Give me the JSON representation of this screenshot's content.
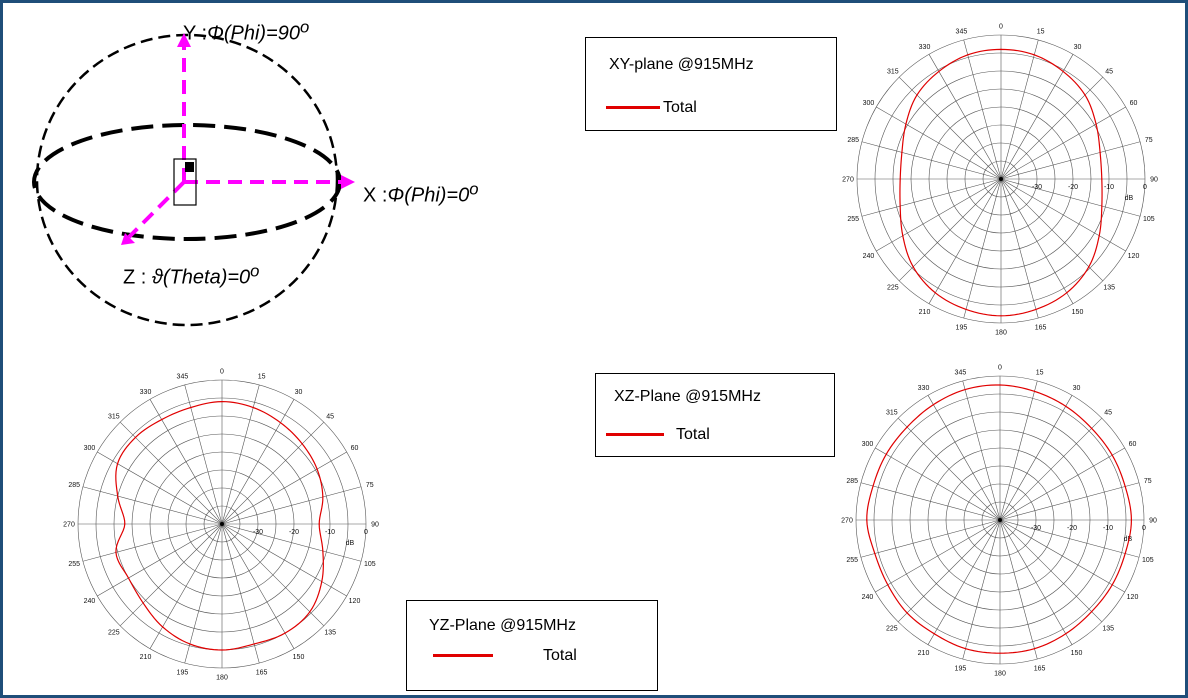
{
  "colors": {
    "frame": "#1f4e79",
    "pattern": "#e00000",
    "axes_arrow": "#ff00ff",
    "grid": "#555555"
  },
  "diagram": {
    "y_prefix": "Y :",
    "y_text": "Φ(Phi)=90",
    "y_sup": "o",
    "x_prefix": "X :",
    "x_text": "Φ(Phi)=0",
    "x_sup": "o",
    "z_prefix": "Z : ",
    "z_text": "ϑ(Theta)=0",
    "z_sup": "o"
  },
  "legends": {
    "xy": {
      "title": "XY-plane @915MHz",
      "series": "Total"
    },
    "xz": {
      "title": "XZ-Plane @915MHz",
      "series": "Total"
    },
    "yz": {
      "title": "YZ-Plane @915MHz",
      "series": "Total"
    }
  },
  "chart_data": [
    {
      "type": "polar",
      "title": "XY-plane @915MHz",
      "angle_ticks": [
        "0",
        "15",
        "30",
        "45",
        "60",
        "75",
        "90",
        "105",
        "120",
        "135",
        "150",
        "165",
        "180",
        "195",
        "210",
        "225",
        "240",
        "255",
        "270",
        "285",
        "300",
        "315",
        "330",
        "345"
      ],
      "radial_ticks": [
        "-30",
        "-20",
        "-10",
        "0"
      ],
      "radial_unit": "dB",
      "rlim": [
        -40,
        0
      ],
      "series": [
        {
          "name": "Total",
          "angles_deg": [
            0,
            15,
            30,
            45,
            60,
            75,
            90,
            105,
            120,
            135,
            150,
            165,
            180,
            195,
            210,
            225,
            240,
            255,
            270,
            285,
            300,
            315,
            330,
            345
          ],
          "values_db": [
            -4,
            -4.3,
            -5.5,
            -7,
            -9.5,
            -11.5,
            -12,
            -11,
            -8.5,
            -5.5,
            -3.5,
            -2.5,
            -2,
            -2.5,
            -3.5,
            -5.5,
            -8.5,
            -11,
            -12,
            -11.5,
            -9.5,
            -7,
            -5.5,
            -4.3
          ]
        }
      ]
    },
    {
      "type": "polar",
      "title": "YZ-Plane @915MHz",
      "angle_ticks": [
        "0",
        "15",
        "30",
        "45",
        "60",
        "75",
        "90",
        "105",
        "120",
        "135",
        "150",
        "165",
        "180",
        "195",
        "210",
        "225",
        "240",
        "255",
        "270",
        "285",
        "300",
        "315",
        "330",
        "345"
      ],
      "radial_ticks": [
        "-30",
        "-20",
        "-10",
        "0"
      ],
      "radial_unit": "dB",
      "rlim": [
        -40,
        0
      ],
      "series": [
        {
          "name": "Total",
          "angles_deg": [
            0,
            15,
            30,
            45,
            60,
            75,
            90,
            105,
            120,
            135,
            150,
            165,
            180,
            195,
            210,
            225,
            240,
            255,
            270,
            285,
            300,
            315,
            330,
            345
          ],
          "values_db": [
            -6,
            -6.5,
            -7.5,
            -8.5,
            -9.5,
            -11,
            -13,
            -11,
            -8,
            -5.5,
            -5,
            -5.5,
            -5,
            -5.5,
            -7,
            -9,
            -10,
            -9.5,
            -13,
            -10,
            -6.5,
            -6,
            -6.5,
            -6.5
          ]
        }
      ]
    },
    {
      "type": "polar",
      "title": "XZ-Plane @915MHz",
      "angle_ticks": [
        "0",
        "15",
        "30",
        "45",
        "60",
        "75",
        "90",
        "105",
        "120",
        "135",
        "150",
        "165",
        "180",
        "195",
        "210",
        "225",
        "240",
        "255",
        "270",
        "285",
        "300",
        "315",
        "330",
        "345"
      ],
      "radial_ticks": [
        "-30",
        "-20",
        "-10",
        "0"
      ],
      "radial_unit": "dB",
      "rlim": [
        -40,
        0
      ],
      "series": [
        {
          "name": "Total",
          "angles_deg": [
            0,
            15,
            30,
            45,
            60,
            75,
            90,
            105,
            120,
            135,
            150,
            165,
            180,
            195,
            210,
            225,
            240,
            255,
            270,
            285,
            300,
            315,
            330,
            345
          ],
          "values_db": [
            -2.5,
            -3,
            -3.5,
            -4,
            -4,
            -4,
            -3.5,
            -4,
            -4,
            -4,
            -3.5,
            -3,
            -3,
            -3,
            -3.5,
            -3.5,
            -4,
            -4,
            -3,
            -3.5,
            -3.5,
            -3.5,
            -3,
            -2.5
          ]
        }
      ]
    }
  ]
}
